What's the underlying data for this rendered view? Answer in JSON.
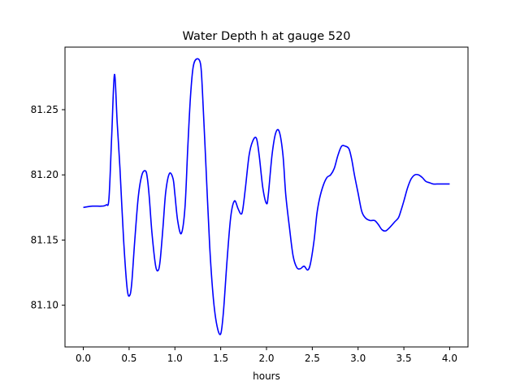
{
  "chart_data": {
    "type": "line",
    "title": "Water Depth h at gauge 520",
    "xlabel": "hours",
    "ylabel": "",
    "xlim": [
      -0.2,
      4.2
    ],
    "ylim": [
      81.068,
      81.298
    ],
    "xticks": [
      0.0,
      0.5,
      1.0,
      1.5,
      2.0,
      2.5,
      3.0,
      3.5,
      4.0
    ],
    "xtick_labels": [
      "0.0",
      "0.5",
      "1.0",
      "1.5",
      "2.0",
      "2.5",
      "3.0",
      "3.5",
      "4.0"
    ],
    "yticks": [
      81.1,
      81.15,
      81.2,
      81.25
    ],
    "ytick_labels": [
      "81.10",
      "81.15",
      "81.20",
      "81.25"
    ],
    "grid": false,
    "legend": "none",
    "series": [
      {
        "color": "#0000ff",
        "x": [
          0.0,
          0.1,
          0.2,
          0.25,
          0.28,
          0.31,
          0.34,
          0.37,
          0.4,
          0.44,
          0.48,
          0.51,
          0.53,
          0.56,
          0.6,
          0.64,
          0.68,
          0.7,
          0.72,
          0.75,
          0.79,
          0.82,
          0.84,
          0.87,
          0.9,
          0.94,
          0.98,
          1.0,
          1.03,
          1.07,
          1.11,
          1.14,
          1.17,
          1.2,
          1.24,
          1.28,
          1.3,
          1.34,
          1.38,
          1.42,
          1.46,
          1.5,
          1.53,
          1.57,
          1.61,
          1.65,
          1.69,
          1.72,
          1.74,
          1.77,
          1.81,
          1.85,
          1.89,
          1.92,
          1.96,
          2.0,
          2.02,
          2.06,
          2.1,
          2.14,
          2.18,
          2.21,
          2.25,
          2.29,
          2.33,
          2.37,
          2.41,
          2.45,
          2.48,
          2.52,
          2.55,
          2.58,
          2.62,
          2.66,
          2.7,
          2.74,
          2.78,
          2.82,
          2.86,
          2.9,
          2.93,
          2.96,
          3.0,
          3.04,
          3.08,
          3.13,
          3.18,
          3.22,
          3.26,
          3.3,
          3.35,
          3.4,
          3.44,
          3.47,
          3.5,
          3.54,
          3.58,
          3.62,
          3.66,
          3.7,
          3.74,
          3.78,
          3.82,
          3.86,
          3.9,
          3.94,
          3.97,
          4.0
        ],
        "y": [
          81.175,
          81.176,
          81.176,
          81.177,
          81.182,
          81.23,
          81.277,
          81.24,
          81.205,
          81.15,
          81.112,
          81.108,
          81.118,
          81.148,
          81.183,
          81.2,
          81.203,
          81.197,
          81.183,
          81.155,
          81.13,
          81.127,
          81.135,
          81.16,
          81.187,
          81.201,
          81.197,
          81.185,
          81.165,
          81.155,
          81.175,
          81.22,
          81.26,
          81.283,
          81.289,
          81.285,
          81.265,
          81.205,
          81.145,
          81.105,
          81.084,
          81.078,
          81.095,
          81.135,
          81.168,
          81.18,
          81.174,
          81.17,
          81.173,
          81.19,
          81.215,
          81.226,
          81.228,
          81.215,
          81.19,
          81.178,
          81.185,
          81.215,
          81.232,
          81.233,
          81.215,
          81.185,
          81.16,
          81.138,
          81.129,
          81.128,
          81.13,
          81.127,
          81.132,
          81.15,
          81.17,
          81.182,
          81.192,
          81.198,
          81.2,
          81.205,
          81.215,
          81.222,
          81.222,
          81.22,
          81.212,
          81.2,
          81.186,
          81.172,
          81.167,
          81.165,
          81.165,
          81.162,
          81.158,
          81.157,
          81.16,
          81.164,
          81.167,
          81.173,
          81.18,
          81.19,
          81.197,
          81.2,
          81.2,
          81.198,
          81.195,
          81.194,
          81.193,
          81.193,
          81.193,
          81.193,
          81.193,
          81.193
        ]
      }
    ]
  }
}
